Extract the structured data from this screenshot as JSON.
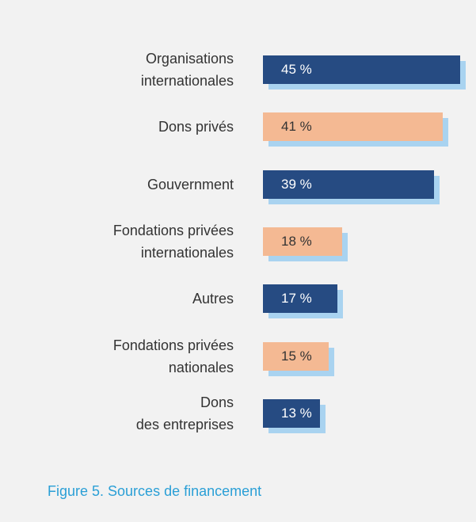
{
  "chart_data": {
    "type": "bar",
    "orientation": "horizontal",
    "title": "Figure 5. Sources de financement",
    "categories": [
      "Organisations\ninternationales",
      "Dons privés",
      "Gouvernment",
      "Fondations privées\ninternationales",
      "Autres",
      "Fondations privées\nnationales",
      "Dons\ndes entreprises"
    ],
    "values": [
      45,
      41,
      39,
      18,
      17,
      15,
      13
    ],
    "value_labels": [
      "45 %",
      "41 %",
      "39 %",
      "18 %",
      "17 %",
      "15 %",
      "13 %"
    ],
    "colors": [
      "#264b82",
      "#f4b993",
      "#264b82",
      "#f4b993",
      "#264b82",
      "#f4b993",
      "#264b82"
    ]
  }
}
